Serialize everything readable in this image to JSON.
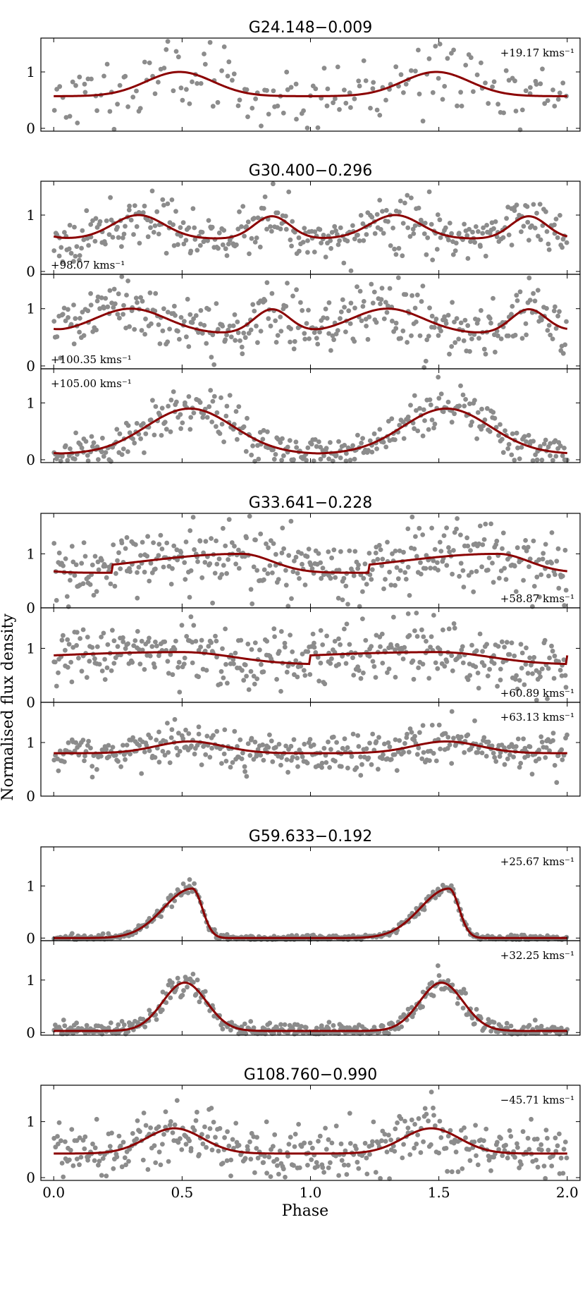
{
  "figure": {
    "y_axis_label": "Normalised flux density",
    "x_axis_label": "Phase",
    "x_ticks": [
      "0.0",
      "0.5",
      "1.0",
      "1.5",
      "2.0"
    ],
    "xlim": [
      -0.05,
      2.05
    ]
  },
  "colors": {
    "points": "#8c8c8c",
    "model": "#8b0000",
    "axes": "#000000"
  },
  "chart_data": [
    {
      "type": "scatter",
      "source": "G24.148−0.009",
      "title": "G24.148−0.009",
      "velocity_label": "+19.17 kms⁻¹",
      "label_pos": "top-right",
      "ylim": [
        -0.05,
        1.6
      ],
      "yticks": [
        "0",
        "1"
      ],
      "model": {
        "shape": "gauss",
        "base": 0.57,
        "amp": 0.43,
        "center": 0.49,
        "width": 0.13
      },
      "scatter": 0.28,
      "n_points": 180,
      "seed": 11
    },
    {
      "type": "scatter",
      "source": "G30.400−0.296",
      "title": "G30.400−0.296",
      "velocity_label": "+98.07 kms⁻¹",
      "label_pos": "bottom-left",
      "ylim": [
        -0.05,
        1.6
      ],
      "yticks": [
        "0",
        "1"
      ],
      "model": {
        "shape": "double",
        "base": 0.58,
        "amp": 0.42,
        "center": 0.33,
        "width": 0.1,
        "amp2": 0.42,
        "center2": 0.85,
        "width2": 0.07
      },
      "scatter": 0.2,
      "n_points": 360,
      "seed": 23
    },
    {
      "type": "scatter",
      "source": "G30.400−0.296",
      "title": "",
      "velocity_label": "+100.35 kms⁻¹",
      "label_pos": "bottom-left",
      "ylim": [
        -0.05,
        1.6
      ],
      "yticks": [
        "0",
        "1"
      ],
      "model": {
        "shape": "double",
        "base": 0.56,
        "amp": 0.44,
        "center": 0.3,
        "width": 0.14,
        "amp2": 0.45,
        "center2": 0.85,
        "width2": 0.07
      },
      "scatter": 0.25,
      "n_points": 360,
      "seed": 37
    },
    {
      "type": "scatter",
      "source": "G30.400−0.296",
      "title": "",
      "velocity_label": "+105.00 kms⁻¹",
      "label_pos": "top-left",
      "ylim": [
        -0.05,
        1.6
      ],
      "yticks": [
        "0",
        "1"
      ],
      "model": {
        "shape": "gauss",
        "base": 0.1,
        "amp": 0.8,
        "center": 0.53,
        "width": 0.17
      },
      "scatter": 0.2,
      "n_points": 360,
      "seed": 41
    },
    {
      "type": "scatter",
      "source": "G33.641−0.228",
      "title": "G33.641−0.228",
      "velocity_label": "+58.87 kms⁻¹",
      "label_pos": "bottom-right",
      "ylim": [
        0,
        1.75
      ],
      "yticks": [
        "0",
        "1"
      ],
      "model": {
        "shape": "saw",
        "base": 0.65,
        "amp": 0.35,
        "center": 0.73,
        "width": 0.12
      },
      "scatter": 0.3,
      "n_points": 400,
      "seed": 53
    },
    {
      "type": "scatter",
      "source": "G33.641−0.228",
      "title": "",
      "velocity_label": "+60.89 kms⁻¹",
      "label_pos": "bottom-right",
      "ylim": [
        0,
        1.75
      ],
      "yticks": [
        "0",
        "1"
      ],
      "model": {
        "shape": "saw",
        "base": 0.7,
        "amp": 0.23,
        "center": 0.5,
        "width": 0.2
      },
      "scatter": 0.22,
      "n_points": 400,
      "seed": 67
    },
    {
      "type": "scatter",
      "source": "G33.641−0.228",
      "title": "",
      "velocity_label": "+63.13 kms⁻¹",
      "label_pos": "top-right",
      "ylim": [
        0,
        1.75
      ],
      "yticks": [
        "0",
        "1"
      ],
      "model": {
        "shape": "gauss",
        "base": 0.8,
        "amp": 0.22,
        "center": 0.53,
        "width": 0.13
      },
      "scatter": 0.16,
      "n_points": 400,
      "seed": 71
    },
    {
      "type": "scatter",
      "source": "G59.633−0.192",
      "title": "G59.633−0.192",
      "velocity_label": "+25.67 kms⁻¹",
      "label_pos": "top-right",
      "ylim": [
        -0.05,
        1.75
      ],
      "yticks": [
        "0",
        "1"
      ],
      "model": {
        "shape": "spike",
        "base": 0.0,
        "amp": 0.95,
        "center": 0.54,
        "width": 0.07
      },
      "scatter": 0.05,
      "n_points": 420,
      "seed": 83
    },
    {
      "type": "scatter",
      "source": "G59.633−0.192",
      "title": "",
      "velocity_label": "+32.25 kms⁻¹",
      "label_pos": "top-right",
      "ylim": [
        -0.05,
        1.75
      ],
      "yticks": [
        "0",
        "1"
      ],
      "model": {
        "shape": "gauss",
        "base": 0.03,
        "amp": 0.92,
        "center": 0.51,
        "width": 0.085
      },
      "scatter": 0.12,
      "n_points": 420,
      "seed": 97
    },
    {
      "type": "scatter",
      "source": "G108.760−0.990",
      "title": "G108.760−0.990",
      "velocity_label": "−45.71 kms⁻¹",
      "label_pos": "top-right",
      "ylim": [
        -0.05,
        1.65
      ],
      "yticks": [
        "0",
        "1"
      ],
      "model": {
        "shape": "gauss",
        "base": 0.43,
        "amp": 0.45,
        "center": 0.47,
        "width": 0.11
      },
      "scatter": 0.25,
      "n_points": 400,
      "seed": 101
    }
  ]
}
